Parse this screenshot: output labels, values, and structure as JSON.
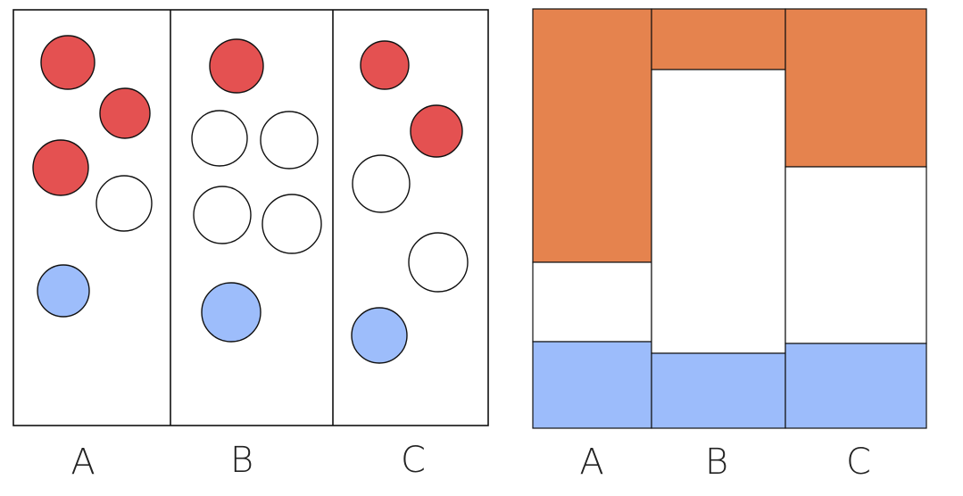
{
  "left_panel": {
    "labels": [
      "A",
      "B",
      "C"
    ]
  },
  "right_panel": {
    "labels": [
      "A",
      "B",
      "C"
    ]
  }
}
